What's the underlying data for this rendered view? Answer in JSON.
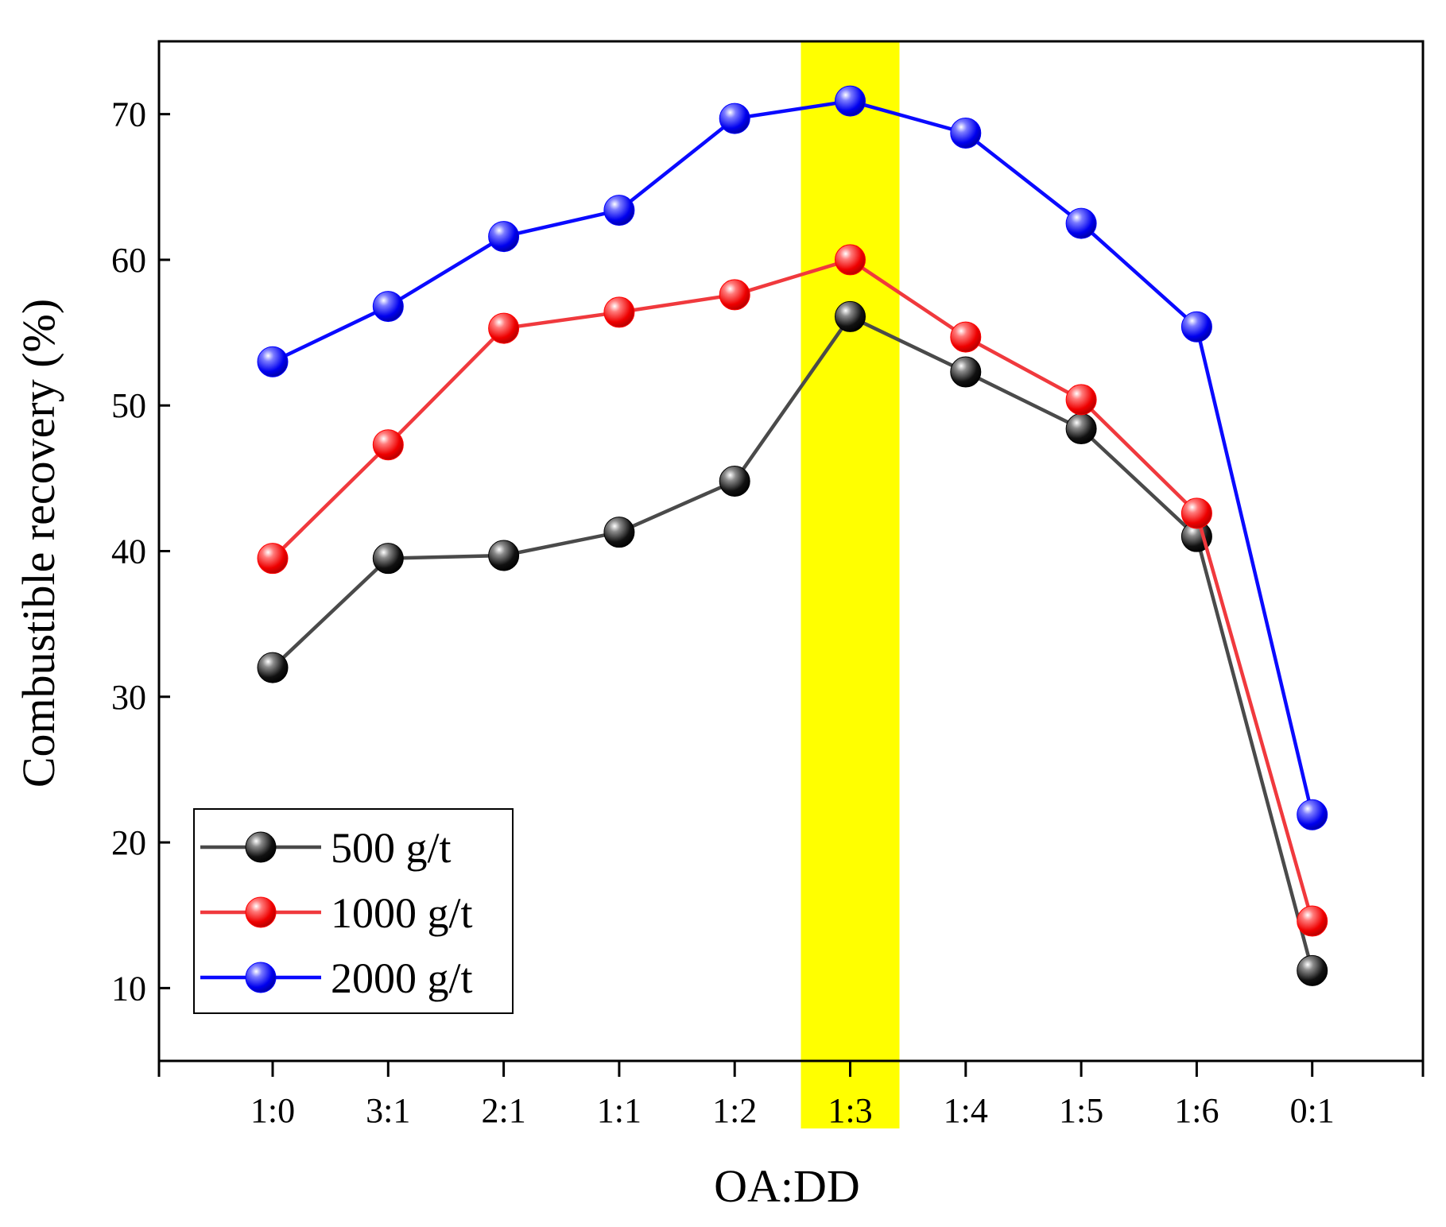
{
  "chart_data": {
    "type": "line",
    "title": "",
    "xlabel": "OA:DD",
    "ylabel": "Combustible recovery (%)",
    "categories": [
      "1:0",
      "3:1",
      "2:1",
      "1:1",
      "1:2",
      "1:3",
      "1:4",
      "1:5",
      "1:6",
      "0:1"
    ],
    "ylim": [
      5,
      75
    ],
    "yticks": [
      10,
      20,
      30,
      40,
      50,
      60,
      70
    ],
    "grid": false,
    "legend_position": "bottom-left",
    "highlight": {
      "category": "1:3",
      "color": "#ffff00"
    },
    "series": [
      {
        "name": "500 g/t",
        "color": "#000000",
        "line_color": "#4a4a4a",
        "values": [
          32.0,
          39.5,
          39.7,
          41.3,
          44.8,
          56.1,
          52.3,
          48.4,
          41.0,
          11.2
        ]
      },
      {
        "name": "1000 g/t",
        "color": "#ff0000",
        "line_color": "#f0393d",
        "values": [
          39.5,
          47.3,
          55.3,
          56.4,
          57.6,
          60.0,
          54.7,
          50.4,
          42.6,
          14.6
        ]
      },
      {
        "name": "2000 g/t",
        "color": "#0000ff",
        "line_color": "#0a0aff",
        "values": [
          53.0,
          56.8,
          61.6,
          63.4,
          69.7,
          70.9,
          68.7,
          62.5,
          55.4,
          21.9
        ]
      }
    ]
  }
}
